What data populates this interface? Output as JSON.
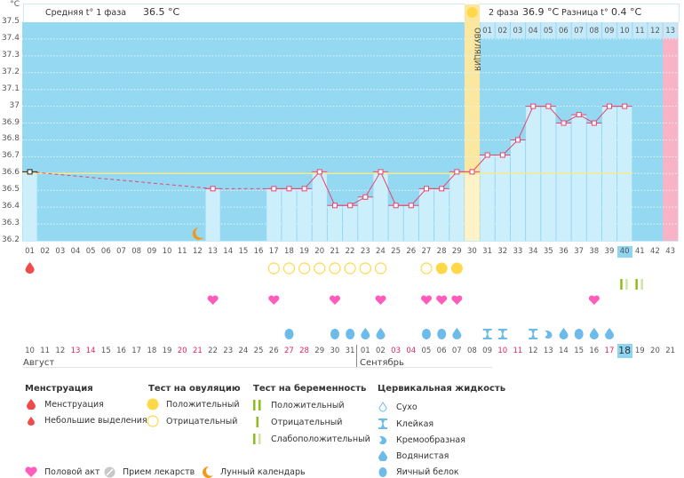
{
  "header": {
    "unit": "°C",
    "phase1_label": "Средняя t° 1 фаза",
    "phase1_value": "36.5 °C",
    "phase2_label": "2 фаза",
    "phase2_value": "36.9 °C",
    "diff_label": "Разница t°",
    "diff_value": "0.4 °C",
    "ovulation_label": "ОВУЛЯЦИЯ"
  },
  "chart_data": {
    "type": "line",
    "title": "",
    "ylabel": "°C",
    "ylim": [
      36.2,
      37.5
    ],
    "yticks": [
      "37.5",
      "37.4",
      "37.3",
      "37.2",
      "37.1",
      "37",
      "36.9",
      "36.8",
      "36.7",
      "36.6",
      "36.5",
      "36.4",
      "36.3",
      "36.2"
    ],
    "cycle_days": [
      "01",
      "02",
      "03",
      "04",
      "05",
      "06",
      "07",
      "08",
      "09",
      "10",
      "11",
      "12",
      "13",
      "14",
      "15",
      "16",
      "17",
      "18",
      "19",
      "20",
      "21",
      "22",
      "23",
      "24",
      "25",
      "26",
      "27",
      "28",
      "29",
      "30",
      "31",
      "32",
      "33",
      "34",
      "35",
      "36",
      "37",
      "38",
      "39",
      "40",
      "41",
      "42",
      "43"
    ],
    "temperatures": [
      36.61,
      null,
      null,
      null,
      null,
      null,
      null,
      null,
      null,
      null,
      null,
      null,
      36.51,
      null,
      null,
      null,
      36.51,
      36.51,
      36.51,
      36.61,
      36.41,
      36.41,
      36.46,
      36.61,
      36.41,
      36.41,
      36.51,
      36.51,
      36.61,
      36.61,
      36.71,
      36.71,
      36.8,
      37.0,
      37.0,
      36.9,
      36.95,
      36.9,
      37.0,
      37.0,
      null,
      null,
      null
    ],
    "coverline": 36.6,
    "ovulation_day": 30,
    "current_day": 40,
    "predicted_next_day": 43,
    "luteal_days": [
      "01",
      "02",
      "03",
      "04",
      "05",
      "06",
      "07",
      "08",
      "09",
      "10",
      "11",
      "12",
      "13"
    ],
    "dates": [
      {
        "d": "10",
        "w": false
      },
      {
        "d": "11",
        "w": false
      },
      {
        "d": "12",
        "w": false
      },
      {
        "d": "13",
        "w": true
      },
      {
        "d": "14",
        "w": true
      },
      {
        "d": "15",
        "w": false
      },
      {
        "d": "16",
        "w": false
      },
      {
        "d": "17",
        "w": false
      },
      {
        "d": "18",
        "w": false
      },
      {
        "d": "19",
        "w": false
      },
      {
        "d": "20",
        "w": true
      },
      {
        "d": "21",
        "w": true
      },
      {
        "d": "22",
        "w": false
      },
      {
        "d": "23",
        "w": false
      },
      {
        "d": "24",
        "w": false
      },
      {
        "d": "25",
        "w": false
      },
      {
        "d": "26",
        "w": false
      },
      {
        "d": "27",
        "w": true
      },
      {
        "d": "28",
        "w": true
      },
      {
        "d": "29",
        "w": false
      },
      {
        "d": "30",
        "w": false
      },
      {
        "d": "31",
        "w": false
      },
      {
        "d": "01",
        "w": false
      },
      {
        "d": "02",
        "w": false
      },
      {
        "d": "03",
        "w": true
      },
      {
        "d": "04",
        "w": true
      },
      {
        "d": "05",
        "w": false
      },
      {
        "d": "06",
        "w": false
      },
      {
        "d": "07",
        "w": false
      },
      {
        "d": "08",
        "w": false
      },
      {
        "d": "09",
        "w": false
      },
      {
        "d": "10",
        "w": true
      },
      {
        "d": "11",
        "w": true
      },
      {
        "d": "12",
        "w": false
      },
      {
        "d": "13",
        "w": false
      },
      {
        "d": "14",
        "w": false
      },
      {
        "d": "15",
        "w": false
      },
      {
        "d": "16",
        "w": false
      },
      {
        "d": "17",
        "w": true
      },
      {
        "d": "18",
        "w": false
      },
      {
        "d": "19",
        "w": false
      },
      {
        "d": "20",
        "w": false
      },
      {
        "d": "21",
        "w": false
      }
    ],
    "months": [
      "Август",
      "Сентябрь"
    ],
    "events": {
      "menstruation": [
        1
      ],
      "ovulation_test_negative": [
        17,
        18,
        19,
        20,
        21,
        22,
        23,
        24,
        27
      ],
      "ovulation_test_positive": [
        28,
        29
      ],
      "pregnancy_test": [
        {
          "day": 40,
          "type": "positive"
        },
        {
          "day": 41,
          "type": "weak_positive"
        }
      ],
      "intercourse": [
        13,
        17,
        21,
        24,
        27,
        28,
        29,
        38
      ],
      "moon": [
        12
      ],
      "cervical_fluid": [
        {
          "day": 18,
          "type": "egg_white"
        },
        {
          "day": 21,
          "type": "egg_white"
        },
        {
          "day": 22,
          "type": "egg_white"
        },
        {
          "day": 23,
          "type": "watery"
        },
        {
          "day": 24,
          "type": "watery"
        },
        {
          "day": 27,
          "type": "egg_white"
        },
        {
          "day": 28,
          "type": "egg_white"
        },
        {
          "day": 29,
          "type": "watery"
        },
        {
          "day": 31,
          "type": "sticky"
        },
        {
          "day": 32,
          "type": "sticky"
        },
        {
          "day": 34,
          "type": "sticky"
        },
        {
          "day": 35,
          "type": "creamy"
        },
        {
          "day": 36,
          "type": "watery"
        },
        {
          "day": 37,
          "type": "egg_white"
        },
        {
          "day": 38,
          "type": "watery"
        },
        {
          "day": 39,
          "type": "watery"
        }
      ]
    }
  },
  "legend": {
    "menstruation_title": "Менструация",
    "menstruation": "Менструация",
    "spotting": "Небольшие выделения",
    "ovtest_title": "Тест на овуляцию",
    "ovtest_positive": "Положительный",
    "ovtest_negative": "Отрицательный",
    "pregtest_title": "Тест на беременность",
    "pregtest_positive": "Положительный",
    "pregtest_negative": "Отрицательный",
    "pregtest_weak": "Слабоположительный",
    "cf_title": "Цервикальная жидкость",
    "cf_dry": "Сухо",
    "cf_sticky": "Клейкая",
    "cf_creamy": "Кремообразная",
    "cf_watery": "Водянистая",
    "cf_eggwhite": "Яичный белок",
    "intercourse": "Половой акт",
    "medication": "Прием лекарств",
    "moon": "Лунный календарь"
  },
  "colors": {
    "bg_chart": "#94d8f2",
    "bar": "#cdeefb",
    "line": "#e8456e",
    "coverline": "#f5e98a",
    "ovulation": "#fbe7a0",
    "predicted": "#f9b3c6",
    "drop": "#f04a4a",
    "heart": "#ff5cbc",
    "yellow": "#ffd84a",
    "green": "#8bbd1e",
    "cf": "#6cbbea",
    "moon": "#f19a1a"
  }
}
